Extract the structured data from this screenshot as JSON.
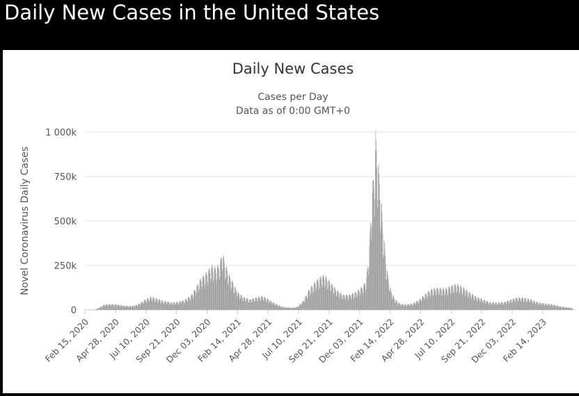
{
  "page": {
    "title": "Daily New Cases in the United States"
  },
  "colors": {
    "background": "#000000",
    "plot_background": "#ffffff",
    "bar": "#9b9b9b",
    "bar_outline": "#7d7d7d",
    "grid": "#e6e6e6",
    "text": "#333333",
    "axis_text": "#555555"
  },
  "chart_data": {
    "type": "bar",
    "title": "Daily New Cases",
    "subtitle_lines": [
      "Cases per Day",
      "Data as of 0:00 GMT+0"
    ],
    "ylabel": "Novel Coronavirus Daily Cases",
    "xlabel": "",
    "ylim": [
      0,
      1000000
    ],
    "y_ticks": [
      {
        "value": 0,
        "label": "0"
      },
      {
        "value": 250000,
        "label": "250k"
      },
      {
        "value": 500000,
        "label": "500k"
      },
      {
        "value": 750000,
        "label": "750k"
      },
      {
        "value": 1000000,
        "label": "1 000k"
      }
    ],
    "x_range": [
      "2020-02-15",
      "2023-04-25"
    ],
    "x_ticks": [
      {
        "date": "2020-02-15",
        "label": "Feb 15, 2020"
      },
      {
        "date": "2020-04-28",
        "label": "Apr 28, 2020"
      },
      {
        "date": "2020-07-10",
        "label": "Jul 10, 2020"
      },
      {
        "date": "2020-09-21",
        "label": "Sep 21, 2020"
      },
      {
        "date": "2020-12-03",
        "label": "Dec 03, 2020"
      },
      {
        "date": "2021-02-14",
        "label": "Feb 14, 2021"
      },
      {
        "date": "2021-04-28",
        "label": "Apr 28, 2021"
      },
      {
        "date": "2021-07-10",
        "label": "Jul 10, 2021"
      },
      {
        "date": "2021-09-21",
        "label": "Sep 21, 2021"
      },
      {
        "date": "2021-12-03",
        "label": "Dec 03, 2021"
      },
      {
        "date": "2022-02-14",
        "label": "Feb 14, 2022"
      },
      {
        "date": "2022-04-28",
        "label": "Apr 28, 2022"
      },
      {
        "date": "2022-07-10",
        "label": "Jul 10, 2022"
      },
      {
        "date": "2022-09-21",
        "label": "Sep 21, 2022"
      },
      {
        "date": "2022-12-03",
        "label": "Dec 03, 2022"
      },
      {
        "date": "2023-02-14",
        "label": "Feb 14, 2023"
      }
    ],
    "grid": true,
    "legend": "none",
    "points": [
      {
        "date": "2020-02-15",
        "value": 0
      },
      {
        "date": "2020-03-10",
        "value": 1000
      },
      {
        "date": "2020-03-20",
        "value": 12000
      },
      {
        "date": "2020-04-02",
        "value": 28000
      },
      {
        "date": "2020-04-15",
        "value": 30000
      },
      {
        "date": "2020-05-01",
        "value": 28000
      },
      {
        "date": "2020-05-20",
        "value": 22000
      },
      {
        "date": "2020-06-05",
        "value": 20000
      },
      {
        "date": "2020-06-20",
        "value": 28000
      },
      {
        "date": "2020-07-05",
        "value": 50000
      },
      {
        "date": "2020-07-20",
        "value": 68000
      },
      {
        "date": "2020-08-01",
        "value": 62000
      },
      {
        "date": "2020-08-20",
        "value": 47000
      },
      {
        "date": "2020-09-10",
        "value": 38000
      },
      {
        "date": "2020-09-25",
        "value": 42000
      },
      {
        "date": "2020-10-10",
        "value": 52000
      },
      {
        "date": "2020-10-25",
        "value": 75000
      },
      {
        "date": "2020-11-05",
        "value": 110000
      },
      {
        "date": "2020-11-15",
        "value": 155000
      },
      {
        "date": "2020-11-25",
        "value": 180000
      },
      {
        "date": "2020-12-05",
        "value": 205000
      },
      {
        "date": "2020-12-15",
        "value": 230000
      },
      {
        "date": "2020-12-25",
        "value": 215000
      },
      {
        "date": "2021-01-03",
        "value": 250000
      },
      {
        "date": "2021-01-08",
        "value": 305000
      },
      {
        "date": "2021-01-15",
        "value": 240000
      },
      {
        "date": "2021-01-25",
        "value": 180000
      },
      {
        "date": "2021-02-05",
        "value": 130000
      },
      {
        "date": "2021-02-15",
        "value": 90000
      },
      {
        "date": "2021-03-01",
        "value": 65000
      },
      {
        "date": "2021-03-15",
        "value": 55000
      },
      {
        "date": "2021-04-01",
        "value": 65000
      },
      {
        "date": "2021-04-15",
        "value": 72000
      },
      {
        "date": "2021-05-01",
        "value": 52000
      },
      {
        "date": "2021-05-15",
        "value": 32000
      },
      {
        "date": "2021-06-01",
        "value": 16000
      },
      {
        "date": "2021-06-20",
        "value": 11000
      },
      {
        "date": "2021-07-05",
        "value": 14000
      },
      {
        "date": "2021-07-20",
        "value": 45000
      },
      {
        "date": "2021-08-05",
        "value": 110000
      },
      {
        "date": "2021-08-20",
        "value": 150000
      },
      {
        "date": "2021-09-01",
        "value": 175000
      },
      {
        "date": "2021-09-10",
        "value": 180000
      },
      {
        "date": "2021-09-25",
        "value": 140000
      },
      {
        "date": "2021-10-10",
        "value": 100000
      },
      {
        "date": "2021-10-25",
        "value": 78000
      },
      {
        "date": "2021-11-10",
        "value": 80000
      },
      {
        "date": "2021-11-25",
        "value": 95000
      },
      {
        "date": "2021-12-08",
        "value": 120000
      },
      {
        "date": "2021-12-18",
        "value": 150000
      },
      {
        "date": "2021-12-25",
        "value": 300000
      },
      {
        "date": "2022-01-01",
        "value": 600000
      },
      {
        "date": "2022-01-07",
        "value": 750000
      },
      {
        "date": "2022-01-10",
        "value": 905000
      },
      {
        "date": "2022-01-14",
        "value": 820000
      },
      {
        "date": "2022-01-20",
        "value": 650000
      },
      {
        "date": "2022-01-28",
        "value": 420000
      },
      {
        "date": "2022-02-05",
        "value": 220000
      },
      {
        "date": "2022-02-14",
        "value": 110000
      },
      {
        "date": "2022-02-25",
        "value": 55000
      },
      {
        "date": "2022-03-10",
        "value": 32000
      },
      {
        "date": "2022-03-25",
        "value": 28000
      },
      {
        "date": "2022-04-10",
        "value": 35000
      },
      {
        "date": "2022-04-25",
        "value": 55000
      },
      {
        "date": "2022-05-10",
        "value": 85000
      },
      {
        "date": "2022-05-25",
        "value": 110000
      },
      {
        "date": "2022-06-10",
        "value": 115000
      },
      {
        "date": "2022-06-25",
        "value": 110000
      },
      {
        "date": "2022-07-10",
        "value": 125000
      },
      {
        "date": "2022-07-22",
        "value": 135000
      },
      {
        "date": "2022-08-05",
        "value": 120000
      },
      {
        "date": "2022-08-20",
        "value": 95000
      },
      {
        "date": "2022-09-05",
        "value": 72000
      },
      {
        "date": "2022-09-20",
        "value": 58000
      },
      {
        "date": "2022-10-10",
        "value": 40000
      },
      {
        "date": "2022-10-30",
        "value": 38000
      },
      {
        "date": "2022-11-15",
        "value": 42000
      },
      {
        "date": "2022-12-01",
        "value": 55000
      },
      {
        "date": "2022-12-15",
        "value": 65000
      },
      {
        "date": "2023-01-01",
        "value": 62000
      },
      {
        "date": "2023-01-15",
        "value": 55000
      },
      {
        "date": "2023-02-01",
        "value": 40000
      },
      {
        "date": "2023-02-20",
        "value": 33000
      },
      {
        "date": "2023-03-10",
        "value": 28000
      },
      {
        "date": "2023-03-25",
        "value": 20000
      },
      {
        "date": "2023-04-10",
        "value": 14000
      },
      {
        "date": "2023-04-25",
        "value": 10000
      }
    ]
  }
}
